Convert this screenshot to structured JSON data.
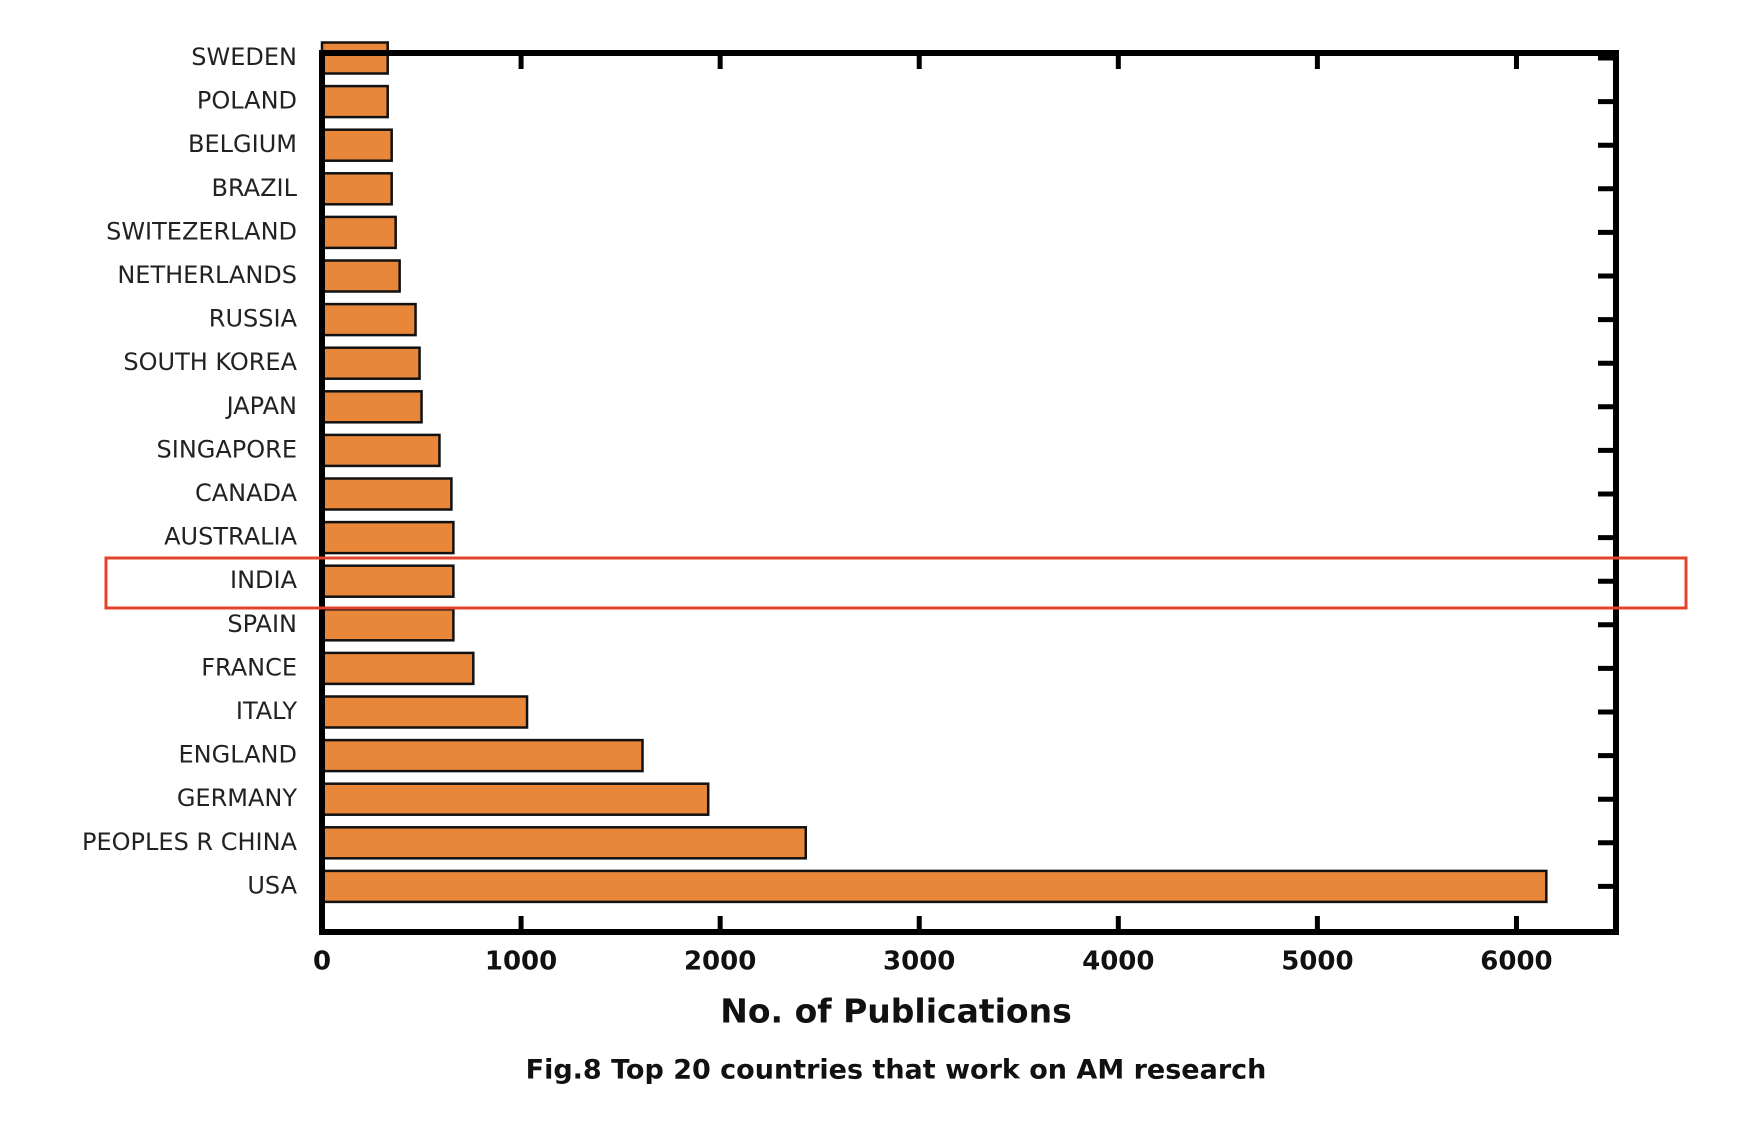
{
  "chart_data": {
    "type": "barh",
    "categories": [
      "SWEDEN",
      "POLAND",
      "BELGIUM",
      "BRAZIL",
      "SWITEZERLAND",
      "NETHERLANDS",
      "RUSSIA",
      "SOUTH KOREA",
      "JAPAN",
      "SINGAPORE",
      "CANADA",
      "AUSTRALIA",
      "INDIA",
      "SPAIN",
      "FRANCE",
      "ITALY",
      "ENGLAND",
      "GERMANY",
      "PEOPLES R CHINA",
      "USA"
    ],
    "values": [
      330,
      330,
      350,
      350,
      370,
      390,
      470,
      490,
      500,
      590,
      650,
      660,
      660,
      660,
      760,
      1030,
      1610,
      1940,
      2430,
      6150
    ],
    "color": "#e8873a",
    "xlim": [
      0,
      6500
    ],
    "xticks": [
      0,
      1000,
      2000,
      3000,
      4000,
      5000,
      6000
    ],
    "xlabel": "No. of Publications",
    "caption": "Fig.8 Top 20 countries that work on AM research"
  }
}
